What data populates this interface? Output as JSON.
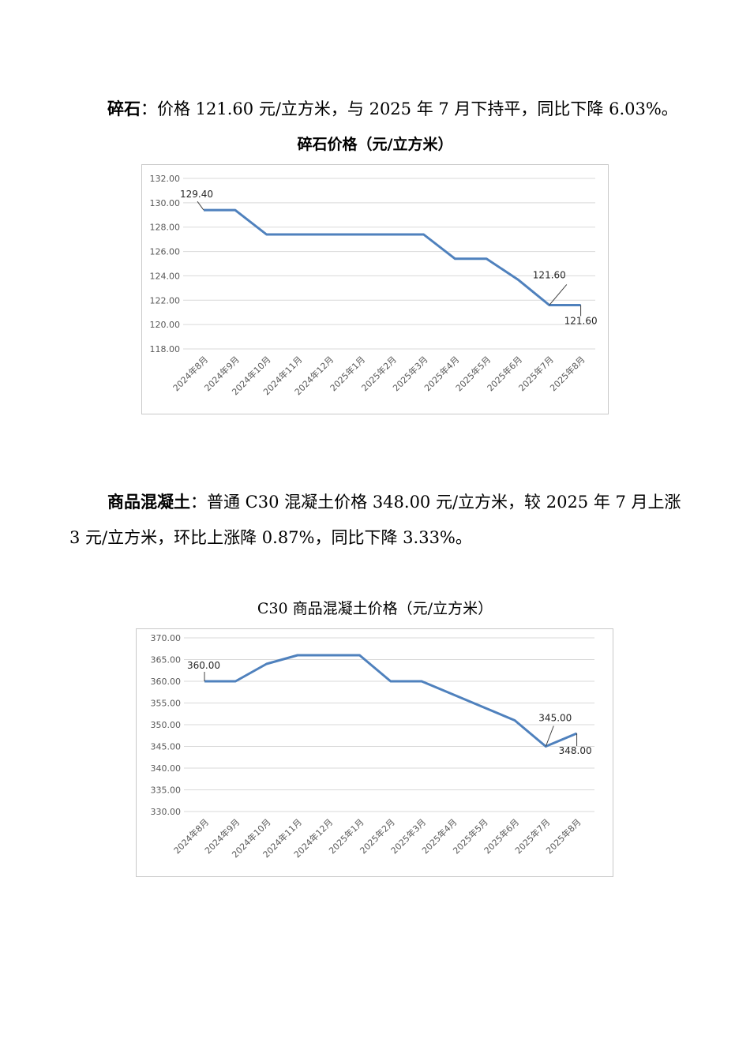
{
  "para1": {
    "lead": "碎石",
    "text": "：价格 121.60 元/立方米，与 2025 年 7 月下持平，同比下降 6.03%。"
  },
  "para2": {
    "lead": "商品混凝土",
    "text": "：普通 C30 混凝土价格 348.00 元/立方米，较 2025 年 7 月上涨 3 元/立方米，环比上涨降 0.87%，同比下降 3.33%。"
  },
  "colors": {
    "line": "#4f81bd",
    "grid": "#d9d9d9",
    "axis_text": "#595959"
  },
  "chart_data": [
    {
      "type": "line",
      "title": "碎石价格（元/立方米）",
      "categories": [
        "2024年8月",
        "2024年9月",
        "2024年10月",
        "2024年11月",
        "2024年12月",
        "2025年1月",
        "2025年2月",
        "2025年3月",
        "2025年4月",
        "2025年5月",
        "2025年6月",
        "2025年7月",
        "2025年8月"
      ],
      "values": [
        129.4,
        129.4,
        127.4,
        127.4,
        127.4,
        127.4,
        127.4,
        127.4,
        125.4,
        125.4,
        123.7,
        121.6,
        121.6
      ],
      "ylim": [
        118,
        132
      ],
      "yticks": [
        "118.00",
        "120.00",
        "122.00",
        "124.00",
        "126.00",
        "128.00",
        "130.00",
        "132.00"
      ],
      "data_labels": [
        {
          "index": 0,
          "text": "129.40"
        },
        {
          "index": 11,
          "text": "121.60"
        },
        {
          "index": 12,
          "text": "121.60"
        }
      ],
      "grid": true,
      "legend": "none"
    },
    {
      "type": "line",
      "title": "C30 商品混凝土价格（元/立方米）",
      "categories": [
        "2024年8月",
        "2024年9月",
        "2024年10月",
        "2024年11月",
        "2024年12月",
        "2025年1月",
        "2025年2月",
        "2025年3月",
        "2025年4月",
        "2025年5月",
        "2025年6月",
        "2025年7月",
        "2025年8月"
      ],
      "values": [
        360,
        360,
        364,
        366,
        366,
        366,
        360,
        360,
        357,
        354,
        351,
        345,
        348
      ],
      "ylim": [
        330,
        370
      ],
      "yticks": [
        "330.00",
        "335.00",
        "340.00",
        "345.00",
        "350.00",
        "355.00",
        "360.00",
        "365.00",
        "370.00"
      ],
      "data_labels": [
        {
          "index": 0,
          "text": "360.00"
        },
        {
          "index": 11,
          "text": "345.00"
        },
        {
          "index": 12,
          "text": "348.00"
        }
      ],
      "grid": true,
      "legend": "none"
    }
  ]
}
